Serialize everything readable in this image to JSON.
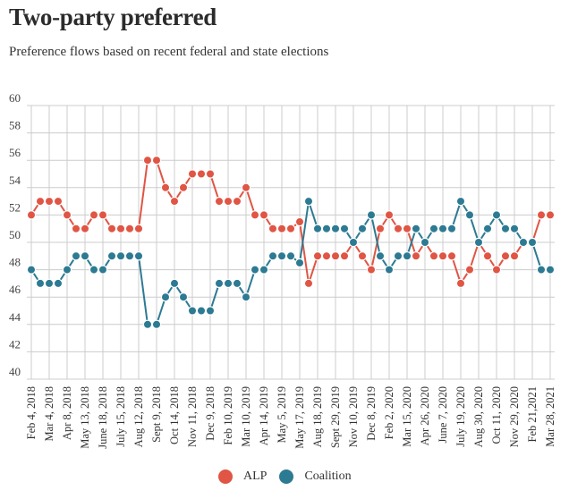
{
  "title": "Two-party preferred",
  "subtitle": "Preference flows based on recent federal and state elections",
  "colors": {
    "ALP": "#e05544",
    "Coalition": "#2d7a93",
    "grid": "#cccccc"
  },
  "legend": [
    {
      "label": "ALP",
      "color": "#e05544"
    },
    {
      "label": "Coalition",
      "color": "#2d7a93"
    }
  ],
  "chart_data": {
    "type": "line",
    "title": "Two-party preferred",
    "subtitle": "Preference flows based on recent federal and state elections",
    "xlabel": "",
    "ylabel": "",
    "ylim": [
      40,
      60
    ],
    "yticks": [
      40,
      42,
      44,
      46,
      48,
      50,
      52,
      54,
      56,
      58,
      60
    ],
    "grid": true,
    "legend_position": "bottom",
    "x_tick_labels": [
      "Feb 4, 2018",
      "Mar 4, 2018",
      "Apr 8, 2018",
      "May 13, 2018",
      "June 18, 2018",
      "July 15, 2018",
      "Aug 12, 2018",
      "Sept 9, 2018",
      "Oct 14, 2018",
      "Nov 11, 2018",
      "Dec 9, 2018",
      "Feb 10, 2019",
      "Mar 10, 2019",
      "Apr 14, 2019",
      "May 5, 2019",
      "May 17, 2019",
      "Aug 18, 2019",
      "Sept 29, 2019",
      "Nov 10, 2019",
      "Dec 8, 2019",
      "Feb 2, 2020",
      "Mar 15, 2020",
      "Apr 26, 2020",
      "June 7, 2020",
      "July 19, 2020",
      "Aug 30, 2020",
      "Oct 11, 2020",
      "Nov 29, 2020",
      "Feb 21,2021",
      "Mar 28, 2021"
    ],
    "points_per_tick": 2,
    "series": [
      {
        "name": "ALP",
        "values": [
          52,
          53,
          53,
          53,
          52,
          51,
          51,
          52,
          52,
          51,
          51,
          51,
          51,
          56,
          56,
          54,
          53,
          54,
          55,
          55,
          55,
          53,
          53,
          53,
          54,
          52,
          52,
          51,
          51,
          51,
          51.5,
          47,
          49,
          49,
          49,
          49,
          50,
          49,
          48,
          51,
          52,
          51,
          51,
          49,
          50,
          49,
          49,
          49,
          47,
          48,
          50,
          49,
          48,
          49,
          49,
          50,
          50,
          52,
          52
        ]
      },
      {
        "name": "Coalition",
        "values": [
          48,
          47,
          47,
          47,
          48,
          49,
          49,
          48,
          48,
          49,
          49,
          49,
          49,
          44,
          44,
          46,
          47,
          46,
          45,
          45,
          45,
          47,
          47,
          47,
          46,
          48,
          48,
          49,
          49,
          49,
          48.5,
          53,
          51,
          51,
          51,
          51,
          50,
          51,
          52,
          49,
          48,
          49,
          49,
          51,
          50,
          51,
          51,
          51,
          53,
          52,
          50,
          51,
          52,
          51,
          51,
          50,
          50,
          48,
          48
        ]
      }
    ]
  }
}
